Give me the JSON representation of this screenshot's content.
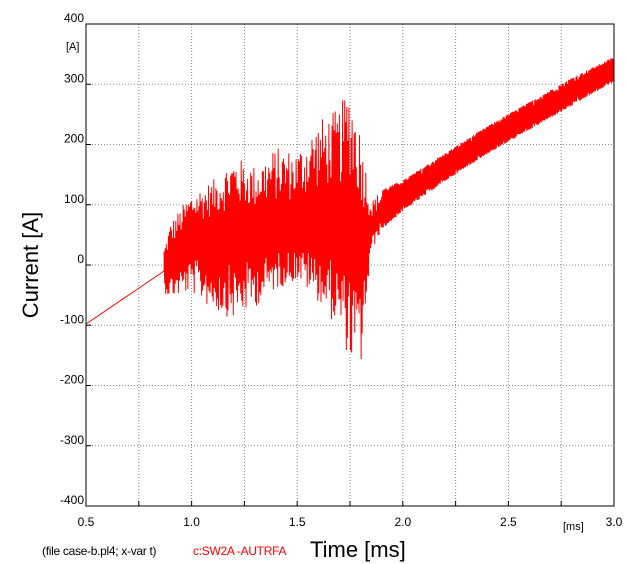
{
  "chart_data": {
    "type": "line",
    "xlabel": "Time [ms]",
    "ylabel": "Current [A]",
    "x_unit_label": "[ms]",
    "y_unit_label": "[A]",
    "xlim": [
      0.5,
      3.0
    ],
    "ylim": [
      -400,
      400
    ],
    "x_ticks": [
      "0.5",
      "1.0",
      "1.5",
      "2.0",
      "2.5",
      "3.0"
    ],
    "y_ticks": [
      "400",
      "300",
      "200",
      "100",
      "0",
      "-100",
      "-200",
      "-300",
      "-400"
    ],
    "grid": true,
    "footer_file": "(file case-b.pl4; x-var t)",
    "series": [
      {
        "name": "c:SW2A -AUTRFA",
        "color": "#ff0000",
        "x": [
          0.5,
          0.87,
          0.9,
          1.0,
          1.1,
          1.2,
          1.3,
          1.4,
          1.5,
          1.6,
          1.7,
          1.75,
          1.8,
          1.85,
          1.9,
          2.0,
          2.2,
          2.4,
          2.6,
          2.8,
          3.0
        ],
        "center": [
          -98,
          -10,
          10,
          40,
          48,
          50,
          52,
          55,
          60,
          62,
          62,
          55,
          35,
          60,
          85,
          112,
          160,
          205,
          245,
          285,
          325
        ],
        "max": [
          -98,
          30,
          70,
          120,
          140,
          180,
          165,
          195,
          190,
          240,
          260,
          305,
          225,
          105,
          125,
          140,
          185,
          230,
          270,
          310,
          345
        ],
        "min": [
          -98,
          -45,
          -55,
          -45,
          -75,
          -90,
          -70,
          -40,
          -25,
          -60,
          -110,
          -160,
          -175,
          20,
          60,
          90,
          140,
          185,
          225,
          265,
          305
        ]
      }
    ]
  }
}
